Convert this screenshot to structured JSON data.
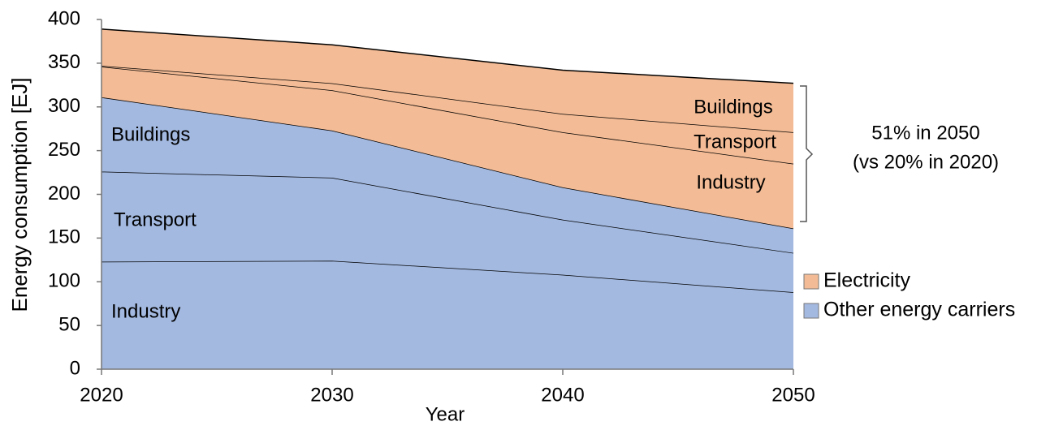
{
  "chart_data": {
    "type": "stacked-area",
    "x_label": "Year",
    "y_label": "Energy consumption [EJ]",
    "x": [
      2020,
      2030,
      2040,
      2050
    ],
    "series": [
      {
        "name": "Industry",
        "color": "#a3b9e0",
        "values": [
          123,
          124,
          108,
          88
        ]
      },
      {
        "name": "Transport",
        "color": "#a3b9e0",
        "values": [
          103,
          95,
          63,
          45
        ]
      },
      {
        "name": "Buildings",
        "color": "#a3b9e0",
        "values": [
          85,
          54,
          37,
          28
        ]
      },
      {
        "name": "Industry",
        "color": "#f4bc96",
        "values": [
          35,
          46,
          63,
          74
        ]
      },
      {
        "name": "Transport",
        "color": "#f4bc96",
        "values": [
          1,
          8,
          21,
          36
        ]
      },
      {
        "name": "Buildings",
        "color": "#f4bc96",
        "values": [
          42,
          44,
          50,
          56
        ]
      }
    ],
    "legend": [
      {
        "label": "Electricity",
        "color": "#f4bc96"
      },
      {
        "label": "Other energy carriers",
        "color": "#a3b9e0"
      }
    ],
    "annotations": [
      "51% in 2050",
      "(vs 20% in 2020)"
    ],
    "xlim": [
      2020,
      2050
    ],
    "xticks": [
      2020,
      2030,
      2040,
      2050
    ],
    "ylim": [
      0,
      400
    ],
    "yticks": [
      0,
      50,
      100,
      150,
      200,
      250,
      300,
      350,
      400
    ]
  }
}
